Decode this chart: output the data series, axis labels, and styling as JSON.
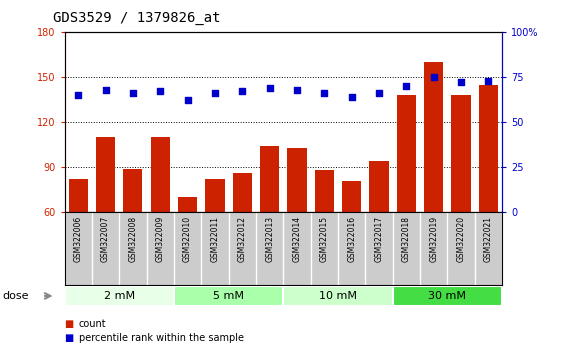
{
  "title": "GDS3529 / 1379826_at",
  "samples": [
    "GSM322006",
    "GSM322007",
    "GSM322008",
    "GSM322009",
    "GSM322010",
    "GSM322011",
    "GSM322012",
    "GSM322013",
    "GSM322014",
    "GSM322015",
    "GSM322016",
    "GSM322017",
    "GSM322018",
    "GSM322019",
    "GSM322020",
    "GSM322021"
  ],
  "counts": [
    82,
    110,
    89,
    110,
    70,
    82,
    86,
    104,
    103,
    88,
    81,
    94,
    138,
    160,
    138,
    145
  ],
  "percentiles": [
    65,
    68,
    66,
    67,
    62,
    66,
    67,
    69,
    68,
    66,
    64,
    66,
    70,
    75,
    72,
    73
  ],
  "dose_groups": [
    {
      "label": "2 mM",
      "start": 0,
      "end": 3,
      "color": "#e8ffe8"
    },
    {
      "label": "5 mM",
      "start": 4,
      "end": 7,
      "color": "#aaffaa"
    },
    {
      "label": "10 mM",
      "start": 8,
      "end": 11,
      "color": "#ccffcc"
    },
    {
      "label": "30 mM",
      "start": 12,
      "end": 15,
      "color": "#44dd44"
    }
  ],
  "ylim_left": [
    60,
    180
  ],
  "ylim_right": [
    0,
    100
  ],
  "yticks_left": [
    60,
    90,
    120,
    150,
    180
  ],
  "yticks_right": [
    0,
    25,
    50,
    75,
    100
  ],
  "bar_color": "#cc2200",
  "dot_color": "#0000cc",
  "bg_color": "#cccccc",
  "plot_bg": "#ffffff",
  "grid_color": "#000000",
  "title_fontsize": 10,
  "tick_fontsize": 7,
  "label_fontsize": 7.5
}
